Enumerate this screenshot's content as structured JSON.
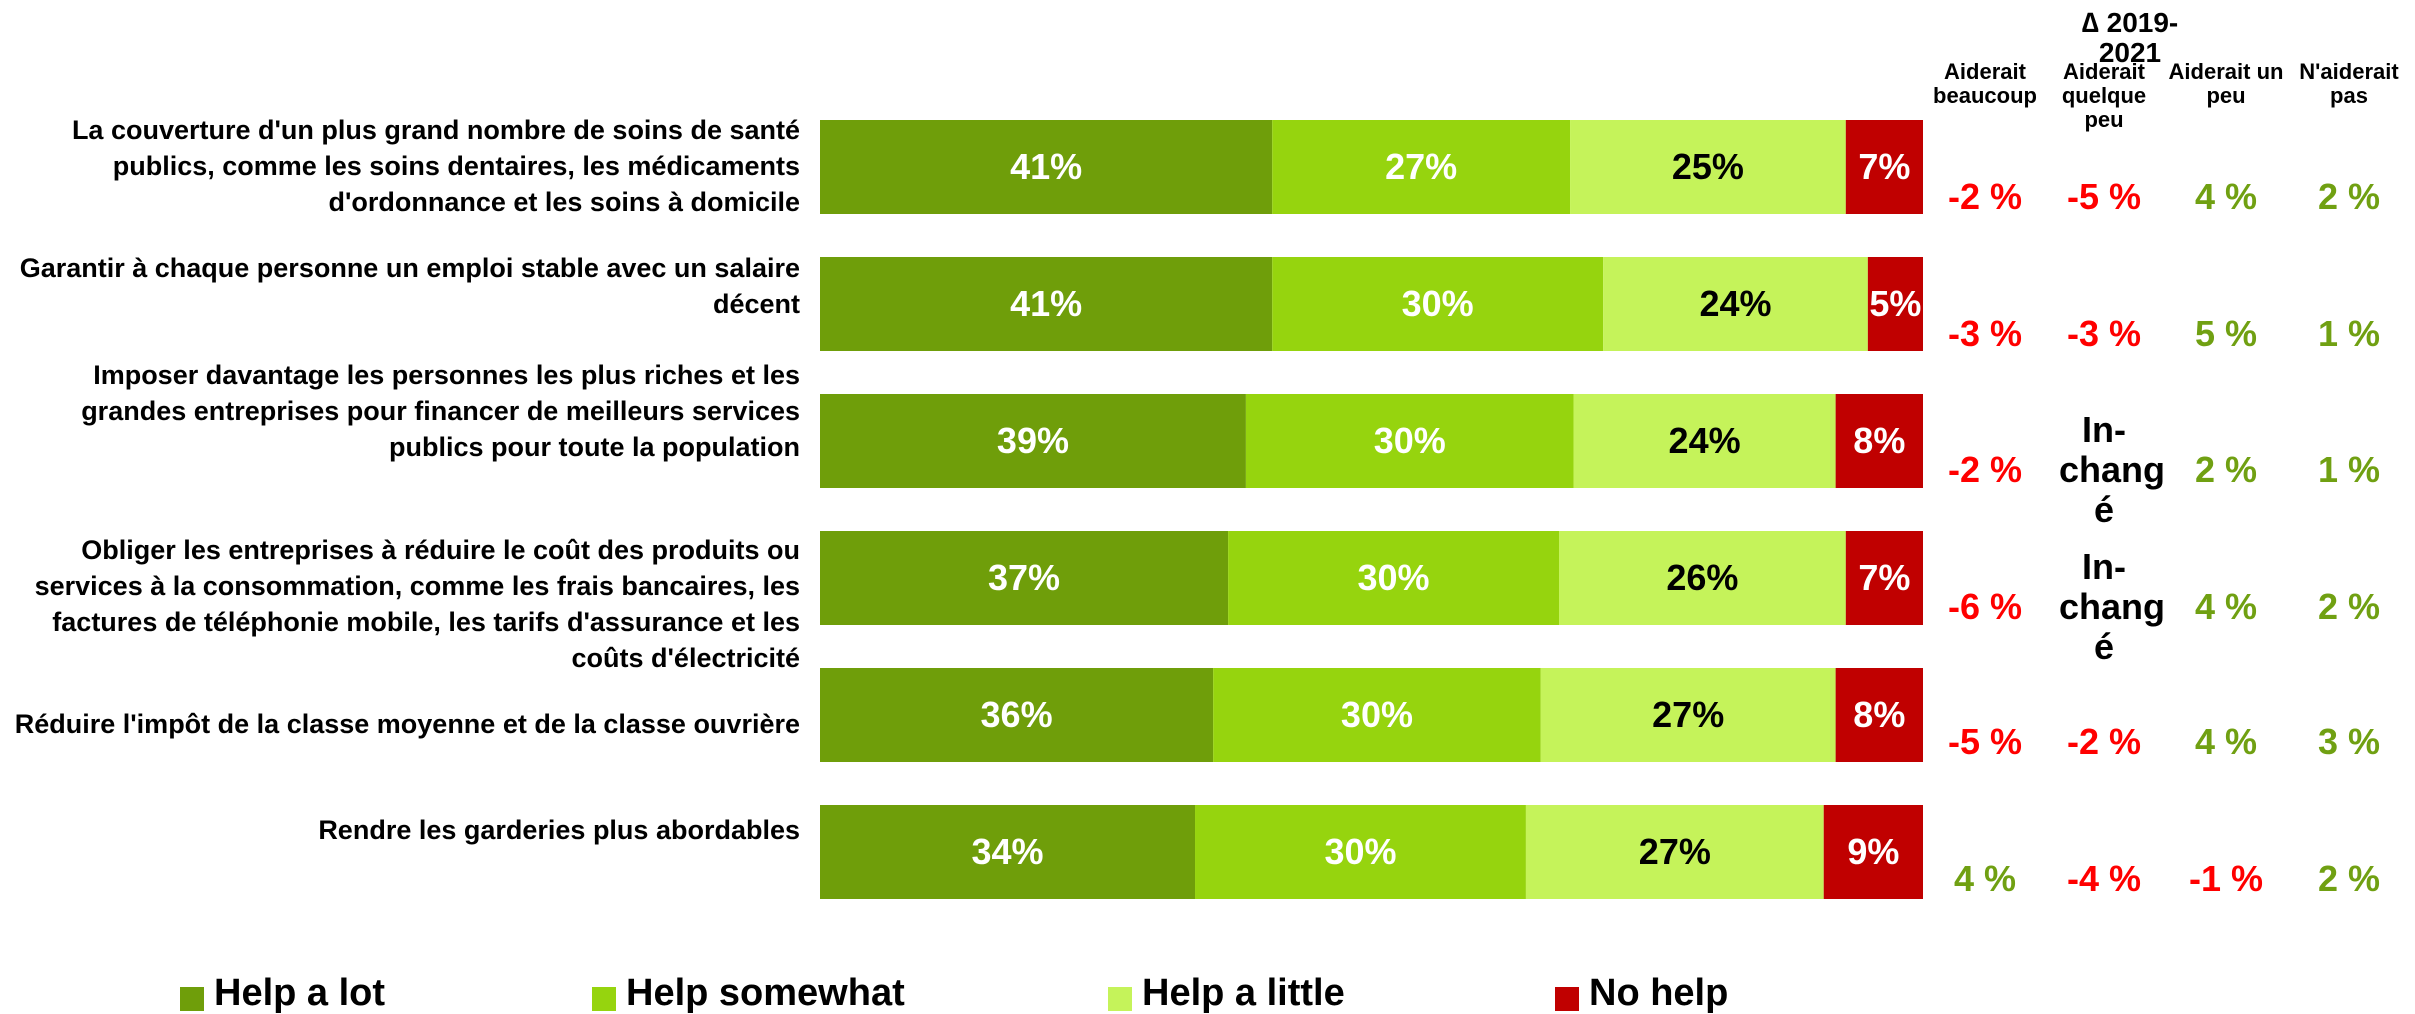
{
  "chart_data": {
    "type": "bar",
    "orientation": "horizontal",
    "stacked": true,
    "categories": [
      "La couverture d'un plus grand nombre de soins de santé publics, comme les soins dentaires, les médicaments d'ordonnance et les soins à domicile",
      "Garantir à chaque personne un emploi stable avec un salaire décent",
      "Imposer davantage les personnes les plus riches et les grandes entreprises pour financer de meilleurs services publics pour toute la population",
      "Obliger les entreprises à réduire le coût des produits ou services à la consommation, comme les frais bancaires, les factures de téléphonie mobile, les tarifs d'assurance et les coûts d'électricité",
      "Réduire l'impôt de la classe moyenne et de la classe ouvrière",
      "Rendre les garderies plus abordables"
    ],
    "series": [
      {
        "name": "Help a lot",
        "color": "#6f9e0a",
        "values": [
          41,
          41,
          39,
          37,
          36,
          34
        ],
        "labels": [
          "41%",
          "41%",
          "39%",
          "37%",
          "36%",
          "34%"
        ]
      },
      {
        "name": "Help somewhat",
        "color": "#96d40e",
        "values": [
          27,
          30,
          30,
          30,
          30,
          30
        ],
        "labels": [
          "27%",
          "30%",
          "30%",
          "30%",
          "30%",
          "30%"
        ]
      },
      {
        "name": "Help a little",
        "color": "#c5f35a",
        "values": [
          25,
          24,
          24,
          26,
          27,
          27
        ],
        "labels": [
          "25%",
          "24%",
          "24%",
          "26%",
          "27%",
          "27%"
        ]
      },
      {
        "name": "No help",
        "color": "#c00000",
        "values": [
          7,
          5,
          8,
          7,
          8,
          9
        ],
        "labels": [
          "7%",
          "5%",
          "8%",
          "7%",
          "8%",
          "9%"
        ]
      }
    ],
    "label_colors": [
      "#ffffff",
      "#ffffff",
      "#000000",
      "#ffffff"
    ],
    "legend_position": "bottom",
    "grid": false
  },
  "delta_table": {
    "title": "∆ 2019-2021",
    "columns": [
      "Aiderait beaucoup",
      "Aiderait quelque peu",
      "Aiderait un peu",
      "N'aiderait pas"
    ],
    "rows": [
      [
        "-2 %",
        "-5 %",
        "4 %",
        "2 %"
      ],
      [
        "-3 %",
        "-3 %",
        "5 %",
        "1 %"
      ],
      [
        "-2 %",
        "In-chang é",
        "2 %",
        "1 %"
      ],
      [
        "-6 %",
        "In-chang é",
        "4 %",
        "2 %"
      ],
      [
        "-5 %",
        "-2 %",
        "4 %",
        "3 %"
      ],
      [
        "4 %",
        "-4 %",
        "-1 %",
        "2 %"
      ]
    ],
    "colors": {
      "negative": "#ff0000",
      "positive": "#70a012",
      "neutral": "#000000"
    }
  }
}
